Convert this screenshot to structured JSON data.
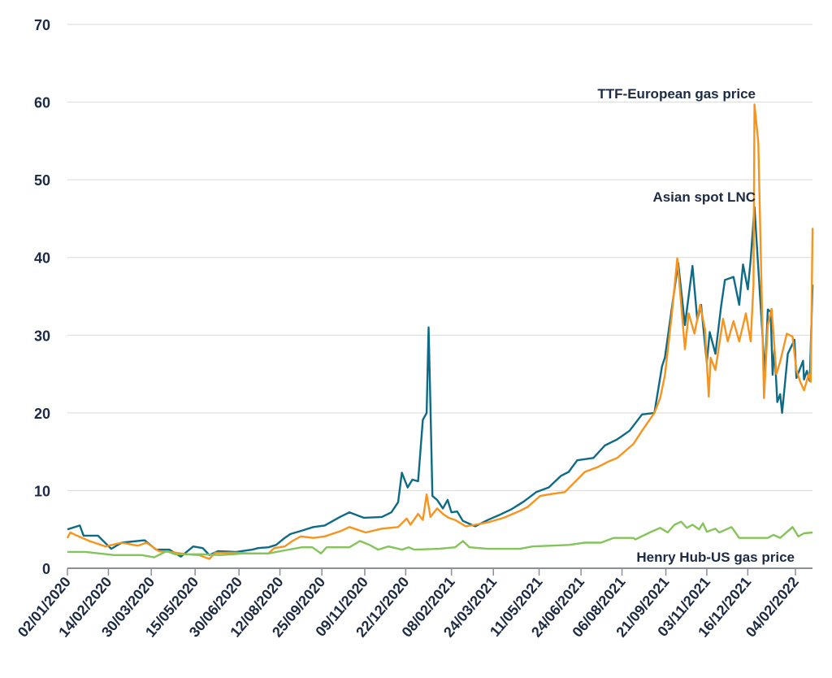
{
  "chart_data": {
    "type": "line",
    "title": "",
    "xlabel": "",
    "ylabel": "",
    "ylim": [
      0,
      70
    ],
    "yticks": [
      0,
      10,
      20,
      30,
      40,
      50,
      60,
      70
    ],
    "grid": true,
    "x_unit": "days since 02/01/2020",
    "xticks": [
      {
        "day": 0,
        "label": "02/01/2020"
      },
      {
        "day": 43,
        "label": "14/02/2020"
      },
      {
        "day": 88,
        "label": "30/03/2020"
      },
      {
        "day": 134,
        "label": "15/05/2020"
      },
      {
        "day": 180,
        "label": "30/06/2020"
      },
      {
        "day": 223,
        "label": "12/08/2020"
      },
      {
        "day": 267,
        "label": "25/09/2020"
      },
      {
        "day": 312,
        "label": "09/11/2020"
      },
      {
        "day": 355,
        "label": "22/12/2020"
      },
      {
        "day": 403,
        "label": "08/02/2021"
      },
      {
        "day": 447,
        "label": "24/03/2021"
      },
      {
        "day": 495,
        "label": "11/05/2021"
      },
      {
        "day": 539,
        "label": "24/06/2021"
      },
      {
        "day": 582,
        "label": "06/08/2021"
      },
      {
        "day": 628,
        "label": "21/09/2021"
      },
      {
        "day": 671,
        "label": "03/11/2021"
      },
      {
        "day": 714,
        "label": "16/12/2021"
      },
      {
        "day": 764,
        "label": "04/02/2022"
      }
    ],
    "xlim": [
      0,
      764
    ],
    "series": [
      {
        "name": "Asian spot LNC",
        "color": "#0e6b86",
        "points": [
          [
            0,
            5.0
          ],
          [
            13,
            5.5
          ],
          [
            17,
            4.2
          ],
          [
            32,
            4.2
          ],
          [
            46,
            2.5
          ],
          [
            57,
            3.3
          ],
          [
            81,
            3.6
          ],
          [
            93,
            2.4
          ],
          [
            107,
            2.4
          ],
          [
            119,
            1.5
          ],
          [
            132,
            2.8
          ],
          [
            142,
            2.6
          ],
          [
            149,
            1.7
          ],
          [
            158,
            2.2
          ],
          [
            177,
            2.1
          ],
          [
            194,
            2.4
          ],
          [
            200,
            2.6
          ],
          [
            211,
            2.7
          ],
          [
            219,
            3.0
          ],
          [
            228,
            3.9
          ],
          [
            234,
            4.4
          ],
          [
            245,
            4.8
          ],
          [
            258,
            5.3
          ],
          [
            270,
            5.5
          ],
          [
            286,
            6.6
          ],
          [
            296,
            7.2
          ],
          [
            311,
            6.5
          ],
          [
            330,
            6.6
          ],
          [
            340,
            7.2
          ],
          [
            347,
            8.5
          ],
          [
            351,
            12.3
          ],
          [
            357,
            10.4
          ],
          [
            362,
            11.4
          ],
          [
            368,
            11.2
          ],
          [
            373,
            19.1
          ],
          [
            377,
            20.0
          ],
          [
            379,
            31.0
          ],
          [
            381,
            20.8
          ],
          [
            383,
            9.3
          ],
          [
            388,
            8.8
          ],
          [
            394,
            7.7
          ],
          [
            399,
            8.8
          ],
          [
            403,
            7.2
          ],
          [
            409,
            7.3
          ],
          [
            415,
            6.1
          ],
          [
            424,
            5.6
          ],
          [
            428,
            5.4
          ],
          [
            441,
            6.2
          ],
          [
            454,
            6.9
          ],
          [
            466,
            7.6
          ],
          [
            479,
            8.6
          ],
          [
            492,
            9.8
          ],
          [
            505,
            10.4
          ],
          [
            518,
            11.9
          ],
          [
            526,
            12.4
          ],
          [
            535,
            13.9
          ],
          [
            552,
            14.2
          ],
          [
            564,
            15.8
          ],
          [
            577,
            16.6
          ],
          [
            590,
            17.7
          ],
          [
            603,
            19.8
          ],
          [
            616,
            20.0
          ],
          [
            624,
            26.0
          ],
          [
            627,
            27.1
          ],
          [
            641,
            39.3
          ],
          [
            648,
            31.3
          ],
          [
            656,
            38.9
          ],
          [
            661,
            32.0
          ],
          [
            665,
            33.9
          ],
          [
            671,
            26.5
          ],
          [
            674,
            30.4
          ],
          [
            680,
            27.6
          ],
          [
            686,
            33.7
          ],
          [
            690,
            37.1
          ],
          [
            699,
            37.5
          ],
          [
            705,
            33.9
          ],
          [
            709,
            39.1
          ],
          [
            714,
            35.9
          ],
          [
            717,
            39.7
          ],
          [
            721,
            46.5
          ],
          [
            732,
            24.9
          ],
          [
            735,
            33.3
          ],
          [
            738,
            33.0
          ],
          [
            740,
            24.9
          ],
          [
            742,
            28.2
          ],
          [
            745,
            21.4
          ],
          [
            748,
            22.4
          ],
          [
            750,
            20.0
          ],
          [
            756,
            27.6
          ],
          [
            763,
            29.4
          ],
          [
            765,
            24.5
          ],
          [
            772,
            26.7
          ],
          [
            773,
            24.3
          ],
          [
            776,
            25.4
          ],
          [
            779,
            24.1
          ],
          [
            782,
            36.5
          ]
        ]
      },
      {
        "name": "TTF-European gas price",
        "color": "#f7941d",
        "points": [
          [
            0,
            3.9
          ],
          [
            3,
            4.6
          ],
          [
            10,
            4.2
          ],
          [
            23,
            3.5
          ],
          [
            40,
            2.8
          ],
          [
            57,
            3.3
          ],
          [
            74,
            2.9
          ],
          [
            83,
            3.3
          ],
          [
            96,
            2.2
          ],
          [
            108,
            2.1
          ],
          [
            125,
            1.8
          ],
          [
            138,
            1.7
          ],
          [
            149,
            1.2
          ],
          [
            155,
            2.0
          ],
          [
            177,
            2.0
          ],
          [
            194,
            1.9
          ],
          [
            211,
            1.9
          ],
          [
            217,
            2.6
          ],
          [
            228,
            2.8
          ],
          [
            236,
            3.5
          ],
          [
            245,
            4.1
          ],
          [
            258,
            3.9
          ],
          [
            270,
            4.1
          ],
          [
            287,
            4.8
          ],
          [
            296,
            5.3
          ],
          [
            313,
            4.6
          ],
          [
            330,
            5.1
          ],
          [
            347,
            5.3
          ],
          [
            356,
            6.4
          ],
          [
            360,
            5.6
          ],
          [
            368,
            7.0
          ],
          [
            373,
            6.2
          ],
          [
            377,
            9.5
          ],
          [
            381,
            6.6
          ],
          [
            388,
            7.7
          ],
          [
            394,
            7.0
          ],
          [
            400,
            6.5
          ],
          [
            407,
            6.2
          ],
          [
            418,
            5.4
          ],
          [
            428,
            5.6
          ],
          [
            441,
            5.9
          ],
          [
            458,
            6.5
          ],
          [
            475,
            7.4
          ],
          [
            483,
            7.9
          ],
          [
            496,
            9.3
          ],
          [
            505,
            9.5
          ],
          [
            522,
            9.8
          ],
          [
            535,
            11.4
          ],
          [
            543,
            12.4
          ],
          [
            556,
            13.0
          ],
          [
            569,
            13.8
          ],
          [
            577,
            14.2
          ],
          [
            594,
            16.0
          ],
          [
            603,
            17.7
          ],
          [
            616,
            20.0
          ],
          [
            622,
            21.9
          ],
          [
            627,
            24.8
          ],
          [
            634,
            32.3
          ],
          [
            640,
            39.9
          ],
          [
            648,
            28.2
          ],
          [
            652,
            32.8
          ],
          [
            658,
            30.2
          ],
          [
            664,
            33.9
          ],
          [
            669,
            30.8
          ],
          [
            673,
            22.1
          ],
          [
            675,
            27.1
          ],
          [
            680,
            25.5
          ],
          [
            688,
            32.1
          ],
          [
            693,
            29.2
          ],
          [
            699,
            31.8
          ],
          [
            705,
            29.2
          ],
          [
            712,
            32.8
          ],
          [
            717,
            29.2
          ],
          [
            720,
            36.5
          ],
          [
            721,
            59.7
          ],
          [
            725,
            54.8
          ],
          [
            731,
            21.9
          ],
          [
            735,
            31.3
          ],
          [
            739,
            33.4
          ],
          [
            744,
            25.0
          ],
          [
            748,
            26.6
          ],
          [
            755,
            30.2
          ],
          [
            761,
            29.8
          ],
          [
            765,
            25.5
          ],
          [
            769,
            24.0
          ],
          [
            773,
            22.9
          ],
          [
            778,
            25.0
          ],
          [
            780,
            24.0
          ],
          [
            782,
            43.8
          ]
        ]
      },
      {
        "name": "Henry Hub-US gas price",
        "color": "#84c45a",
        "points": [
          [
            0,
            2.1
          ],
          [
            19,
            2.1
          ],
          [
            49,
            1.7
          ],
          [
            78,
            1.7
          ],
          [
            91,
            1.4
          ],
          [
            104,
            2.2
          ],
          [
            113,
            1.8
          ],
          [
            142,
            1.8
          ],
          [
            160,
            1.7
          ],
          [
            185,
            1.9
          ],
          [
            211,
            1.9
          ],
          [
            228,
            2.3
          ],
          [
            246,
            2.7
          ],
          [
            257,
            2.7
          ],
          [
            266,
            1.9
          ],
          [
            272,
            2.7
          ],
          [
            296,
            2.7
          ],
          [
            307,
            3.5
          ],
          [
            317,
            3.0
          ],
          [
            326,
            2.4
          ],
          [
            337,
            2.8
          ],
          [
            351,
            2.4
          ],
          [
            358,
            2.7
          ],
          [
            364,
            2.4
          ],
          [
            390,
            2.5
          ],
          [
            407,
            2.7
          ],
          [
            415,
            3.5
          ],
          [
            422,
            2.7
          ],
          [
            441,
            2.5
          ],
          [
            475,
            2.5
          ],
          [
            488,
            2.8
          ],
          [
            526,
            3.0
          ],
          [
            543,
            3.3
          ],
          [
            560,
            3.3
          ],
          [
            573,
            3.9
          ],
          [
            594,
            3.9
          ],
          [
            596,
            3.7
          ],
          [
            611,
            4.6
          ],
          [
            622,
            5.2
          ],
          [
            630,
            4.6
          ],
          [
            637,
            5.6
          ],
          [
            644,
            6.0
          ],
          [
            650,
            5.2
          ],
          [
            656,
            5.6
          ],
          [
            663,
            5.0
          ],
          [
            667,
            5.8
          ],
          [
            671,
            4.7
          ],
          [
            680,
            5.1
          ],
          [
            684,
            4.6
          ],
          [
            697,
            5.3
          ],
          [
            705,
            3.9
          ],
          [
            735,
            3.9
          ],
          [
            741,
            4.3
          ],
          [
            748,
            3.9
          ],
          [
            761,
            5.3
          ],
          [
            767,
            4.1
          ],
          [
            773,
            4.5
          ],
          [
            782,
            4.6
          ]
        ]
      }
    ],
    "annotations": [
      {
        "text": "TTF-European gas price",
        "series": "TTF-European gas price"
      },
      {
        "text": "Asian spot LNC",
        "series": "Asian spot LNC"
      },
      {
        "text": "Henry Hub-US gas price",
        "series": "Henry Hub-US gas price"
      }
    ],
    "legend": "none (inline annotations)"
  }
}
